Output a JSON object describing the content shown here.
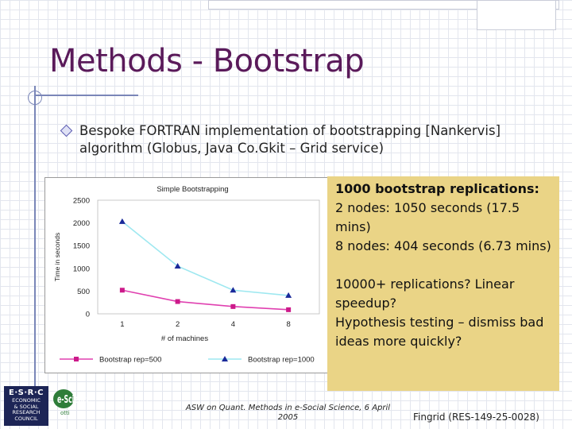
{
  "slide": {
    "title": "Methods - Bootstrap",
    "bullet": "Bespoke FORTRAN implementation of bootstrapping [Nankervis] algorithm (Globus, Java Co.Gkit – Grid service)"
  },
  "notes": {
    "line1": "1000 bootstrap replications:",
    "line2": "2 nodes: 1050 seconds (17.5 mins)",
    "line3": "8 nodes: 404 seconds (6.73 mins)",
    "line4": "10000+ replications? Linear speedup?",
    "line5": "Hypothesis testing – dismiss bad ideas more quickly?"
  },
  "footer": {
    "center": "ASW on Quant. Methods in e-Social Science, 6 April 2005",
    "right": "Fingrid (RES-149-25-0028)"
  },
  "logos": {
    "esrc_line1": "E·S·R·C",
    "esrc_line2": "ECONOMIC",
    "esrc_line3": "& SOCIAL",
    "esrc_line4": "RESEARCH",
    "esrc_line5": "COUNCIL",
    "escience_text": "e-Science",
    "escience_sub": "otti"
  },
  "chart_data": {
    "type": "line",
    "title": "Simple Bootstrapping",
    "xlabel": "# of machines",
    "ylabel": "Time in seconds",
    "categories": [
      "1",
      "2",
      "4",
      "8"
    ],
    "ylim": [
      0,
      2500
    ],
    "yticks": [
      "0",
      "500",
      "1000",
      "1500",
      "2000",
      "2500"
    ],
    "legend_position": "bottom",
    "series": [
      {
        "name": "Bootstrap rep=500",
        "values": [
          520,
          270,
          160,
          90
        ],
        "color": "#e040b0",
        "marker": "square"
      },
      {
        "name": "Bootstrap rep=1000",
        "values": [
          2030,
          1050,
          520,
          404
        ],
        "color": "#9ee8f0",
        "marker": "triangle"
      }
    ]
  }
}
